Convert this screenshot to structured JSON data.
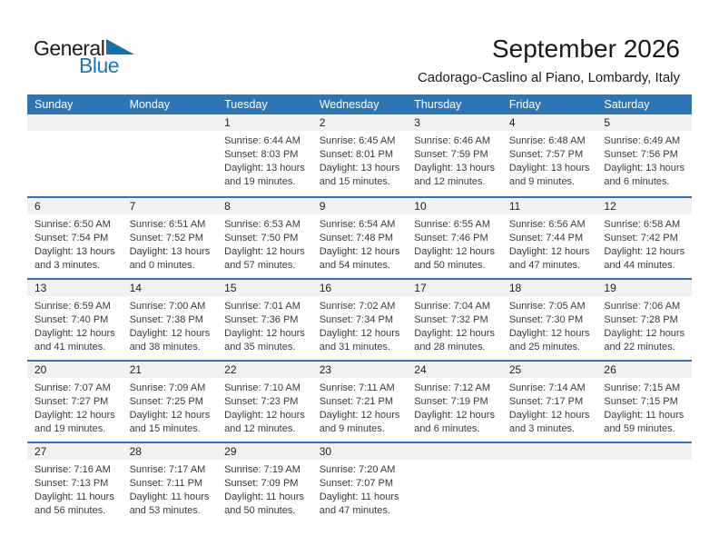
{
  "logo": {
    "text_general": "General",
    "text_blue": "Blue"
  },
  "header": {
    "title": "September 2026",
    "location": "Cadorago-Caslino al Piano, Lombardy, Italy"
  },
  "colors": {
    "header_blue": "#2E75B6",
    "row_divider_blue": "#2E75B6",
    "day_band_gray": "#F1F1F1",
    "logo_blue": "#1879BD",
    "logo_triangle_blue": "#1670AD"
  },
  "calendar": {
    "weekdays": [
      "Sunday",
      "Monday",
      "Tuesday",
      "Wednesday",
      "Thursday",
      "Friday",
      "Saturday"
    ],
    "weeks": [
      [
        null,
        null,
        {
          "day": "1",
          "lines": [
            "Sunrise: 6:44 AM",
            "Sunset: 8:03 PM",
            "Daylight: 13 hours",
            "and 19 minutes."
          ]
        },
        {
          "day": "2",
          "lines": [
            "Sunrise: 6:45 AM",
            "Sunset: 8:01 PM",
            "Daylight: 13 hours",
            "and 15 minutes."
          ]
        },
        {
          "day": "3",
          "lines": [
            "Sunrise: 6:46 AM",
            "Sunset: 7:59 PM",
            "Daylight: 13 hours",
            "and 12 minutes."
          ]
        },
        {
          "day": "4",
          "lines": [
            "Sunrise: 6:48 AM",
            "Sunset: 7:57 PM",
            "Daylight: 13 hours",
            "and 9 minutes."
          ]
        },
        {
          "day": "5",
          "lines": [
            "Sunrise: 6:49 AM",
            "Sunset: 7:56 PM",
            "Daylight: 13 hours",
            "and 6 minutes."
          ]
        }
      ],
      [
        {
          "day": "6",
          "lines": [
            "Sunrise: 6:50 AM",
            "Sunset: 7:54 PM",
            "Daylight: 13 hours",
            "and 3 minutes."
          ]
        },
        {
          "day": "7",
          "lines": [
            "Sunrise: 6:51 AM",
            "Sunset: 7:52 PM",
            "Daylight: 13 hours",
            "and 0 minutes."
          ]
        },
        {
          "day": "8",
          "lines": [
            "Sunrise: 6:53 AM",
            "Sunset: 7:50 PM",
            "Daylight: 12 hours",
            "and 57 minutes."
          ]
        },
        {
          "day": "9",
          "lines": [
            "Sunrise: 6:54 AM",
            "Sunset: 7:48 PM",
            "Daylight: 12 hours",
            "and 54 minutes."
          ]
        },
        {
          "day": "10",
          "lines": [
            "Sunrise: 6:55 AM",
            "Sunset: 7:46 PM",
            "Daylight: 12 hours",
            "and 50 minutes."
          ]
        },
        {
          "day": "11",
          "lines": [
            "Sunrise: 6:56 AM",
            "Sunset: 7:44 PM",
            "Daylight: 12 hours",
            "and 47 minutes."
          ]
        },
        {
          "day": "12",
          "lines": [
            "Sunrise: 6:58 AM",
            "Sunset: 7:42 PM",
            "Daylight: 12 hours",
            "and 44 minutes."
          ]
        }
      ],
      [
        {
          "day": "13",
          "lines": [
            "Sunrise: 6:59 AM",
            "Sunset: 7:40 PM",
            "Daylight: 12 hours",
            "and 41 minutes."
          ]
        },
        {
          "day": "14",
          "lines": [
            "Sunrise: 7:00 AM",
            "Sunset: 7:38 PM",
            "Daylight: 12 hours",
            "and 38 minutes."
          ]
        },
        {
          "day": "15",
          "lines": [
            "Sunrise: 7:01 AM",
            "Sunset: 7:36 PM",
            "Daylight: 12 hours",
            "and 35 minutes."
          ]
        },
        {
          "day": "16",
          "lines": [
            "Sunrise: 7:02 AM",
            "Sunset: 7:34 PM",
            "Daylight: 12 hours",
            "and 31 minutes."
          ]
        },
        {
          "day": "17",
          "lines": [
            "Sunrise: 7:04 AM",
            "Sunset: 7:32 PM",
            "Daylight: 12 hours",
            "and 28 minutes."
          ]
        },
        {
          "day": "18",
          "lines": [
            "Sunrise: 7:05 AM",
            "Sunset: 7:30 PM",
            "Daylight: 12 hours",
            "and 25 minutes."
          ]
        },
        {
          "day": "19",
          "lines": [
            "Sunrise: 7:06 AM",
            "Sunset: 7:28 PM",
            "Daylight: 12 hours",
            "and 22 minutes."
          ]
        }
      ],
      [
        {
          "day": "20",
          "lines": [
            "Sunrise: 7:07 AM",
            "Sunset: 7:27 PM",
            "Daylight: 12 hours",
            "and 19 minutes."
          ]
        },
        {
          "day": "21",
          "lines": [
            "Sunrise: 7:09 AM",
            "Sunset: 7:25 PM",
            "Daylight: 12 hours",
            "and 15 minutes."
          ]
        },
        {
          "day": "22",
          "lines": [
            "Sunrise: 7:10 AM",
            "Sunset: 7:23 PM",
            "Daylight: 12 hours",
            "and 12 minutes."
          ]
        },
        {
          "day": "23",
          "lines": [
            "Sunrise: 7:11 AM",
            "Sunset: 7:21 PM",
            "Daylight: 12 hours",
            "and 9 minutes."
          ]
        },
        {
          "day": "24",
          "lines": [
            "Sunrise: 7:12 AM",
            "Sunset: 7:19 PM",
            "Daylight: 12 hours",
            "and 6 minutes."
          ]
        },
        {
          "day": "25",
          "lines": [
            "Sunrise: 7:14 AM",
            "Sunset: 7:17 PM",
            "Daylight: 12 hours",
            "and 3 minutes."
          ]
        },
        {
          "day": "26",
          "lines": [
            "Sunrise: 7:15 AM",
            "Sunset: 7:15 PM",
            "Daylight: 11 hours",
            "and 59 minutes."
          ]
        }
      ],
      [
        {
          "day": "27",
          "lines": [
            "Sunrise: 7:16 AM",
            "Sunset: 7:13 PM",
            "Daylight: 11 hours",
            "and 56 minutes."
          ]
        },
        {
          "day": "28",
          "lines": [
            "Sunrise: 7:17 AM",
            "Sunset: 7:11 PM",
            "Daylight: 11 hours",
            "and 53 minutes."
          ]
        },
        {
          "day": "29",
          "lines": [
            "Sunrise: 7:19 AM",
            "Sunset: 7:09 PM",
            "Daylight: 11 hours",
            "and 50 minutes."
          ]
        },
        {
          "day": "30",
          "lines": [
            "Sunrise: 7:20 AM",
            "Sunset: 7:07 PM",
            "Daylight: 11 hours",
            "and 47 minutes."
          ]
        },
        null,
        null,
        null
      ]
    ]
  }
}
